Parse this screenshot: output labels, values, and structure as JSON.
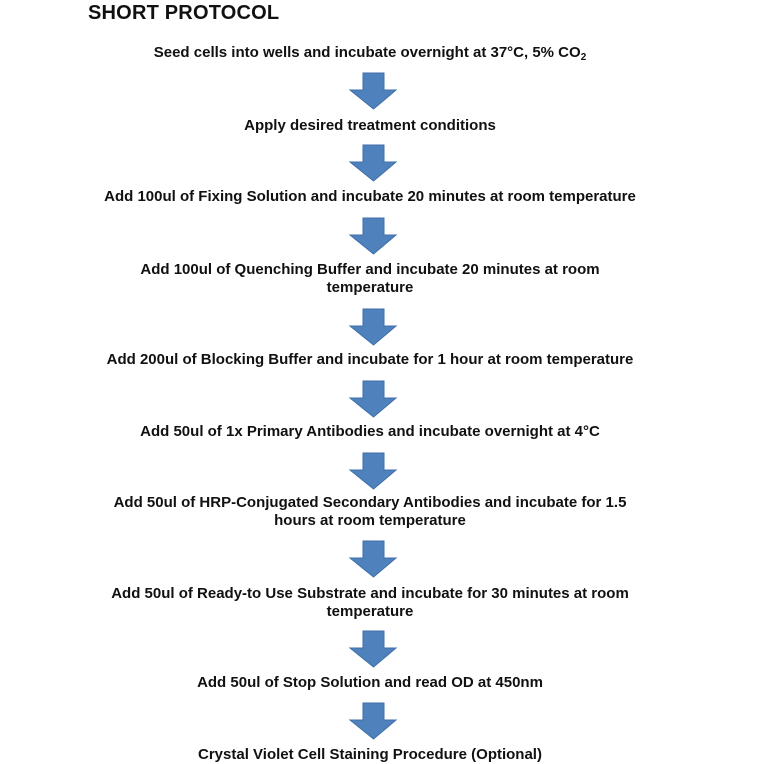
{
  "title": "SHORT PROTOCOL",
  "arrow_color": "#4f81bd",
  "arrow_icon": "down-arrow",
  "steps": [
    {
      "text": "Seed cells into wells and incubate overnight at 37°C, 5% CO",
      "sub": "2"
    },
    {
      "text": "Apply desired treatment conditions"
    },
    {
      "text": "Add 100ul of Fixing Solution and incubate 20 minutes at room temperature"
    },
    {
      "text": "Add 100ul of Quenching Buffer and incubate 20 minutes at room temperature"
    },
    {
      "text": "Add 200ul of Blocking Buffer and incubate for 1 hour at room temperature"
    },
    {
      "text": "Add 50ul of 1x Primary Antibodies and incubate overnight at 4°C"
    },
    {
      "text": "Add 50ul of HRP-Conjugated Secondary Antibodies and incubate for 1.5 hours at room temperature"
    },
    {
      "text": "Add 50ul of Ready-to Use Substrate and incubate for 30 minutes at room temperature"
    },
    {
      "text": "Add 50ul of Stop Solution and read OD at 450nm"
    },
    {
      "text": "Crystal Violet Cell Staining Procedure (Optional)"
    }
  ]
}
